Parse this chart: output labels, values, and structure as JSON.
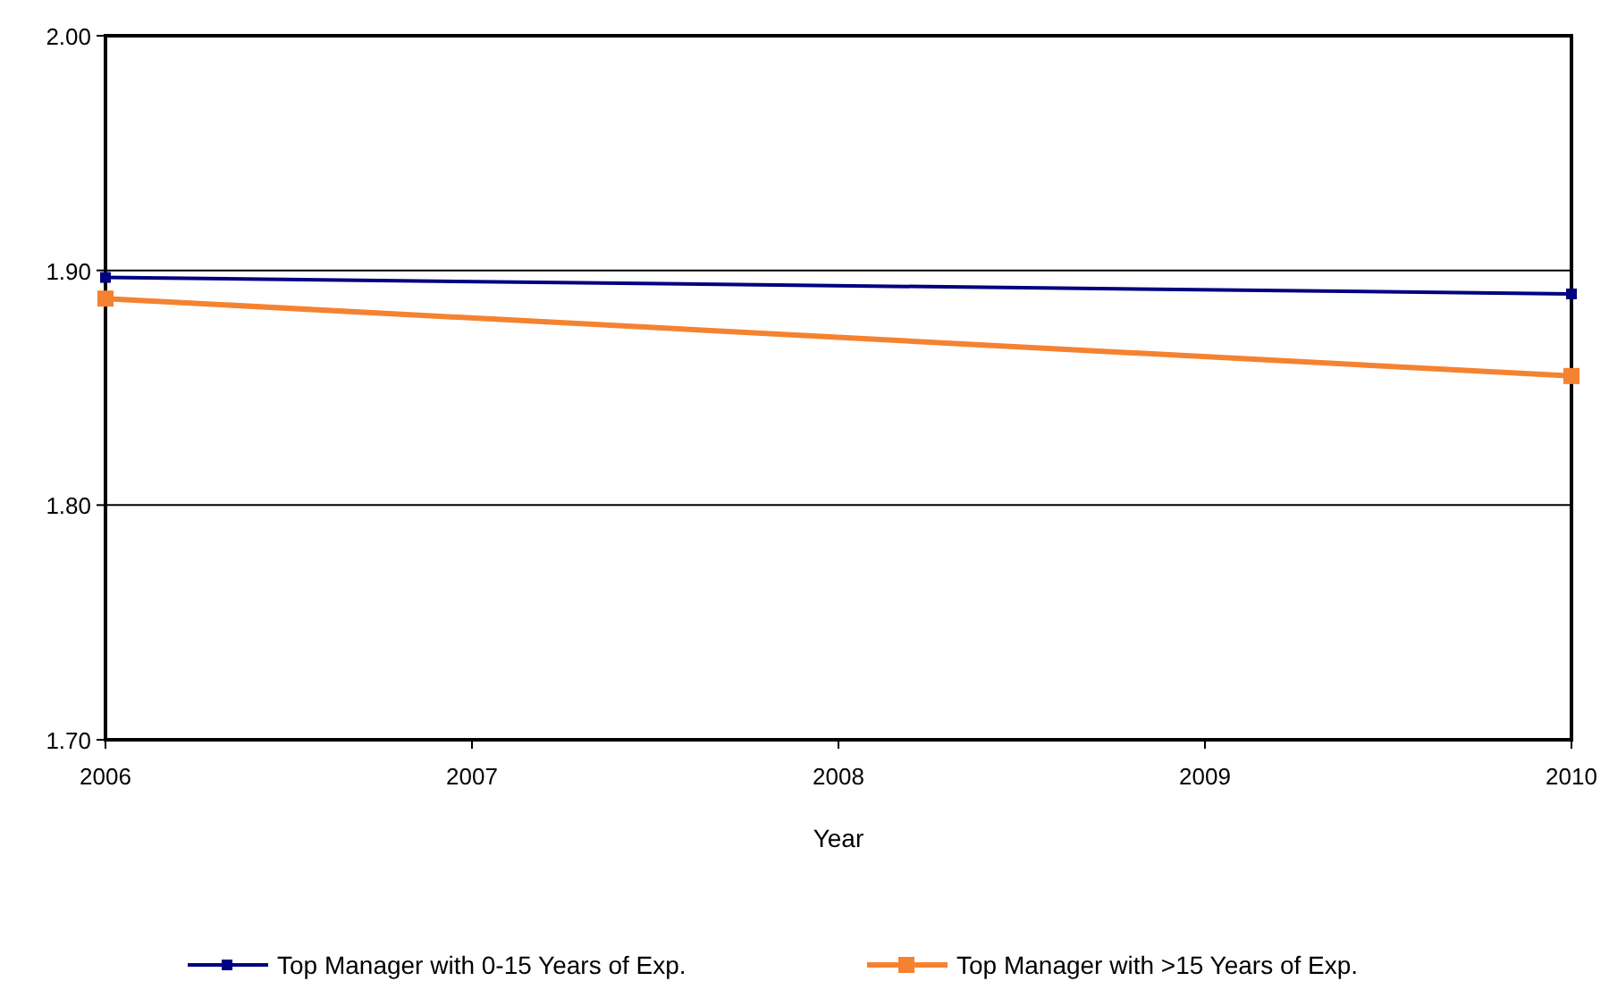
{
  "chart_data": {
    "type": "line",
    "xlabel": "Year",
    "x": [
      2006,
      2010
    ],
    "xlim": [
      2006,
      2010
    ],
    "xticks": [
      2006,
      2007,
      2008,
      2009,
      2010
    ],
    "ylim": [
      1.7,
      2.0
    ],
    "yticks": [
      {
        "value": 1.7,
        "label": "1.70"
      },
      {
        "value": 1.8,
        "label": "1.80"
      },
      {
        "value": 1.9,
        "label": "1.90"
      },
      {
        "value": 2.0,
        "label": "2.00"
      }
    ],
    "grid": "y",
    "legend": "bottom",
    "marker": "square",
    "line_style": "solid",
    "series": [
      {
        "name": "Top Manager with 0-15 Years of Exp.",
        "color": "#000080",
        "values": [
          1.897,
          1.89
        ]
      },
      {
        "name": "Top Manager with >15 Years of Exp.",
        "color": "#f58231",
        "values": [
          1.888,
          1.855
        ]
      }
    ]
  }
}
